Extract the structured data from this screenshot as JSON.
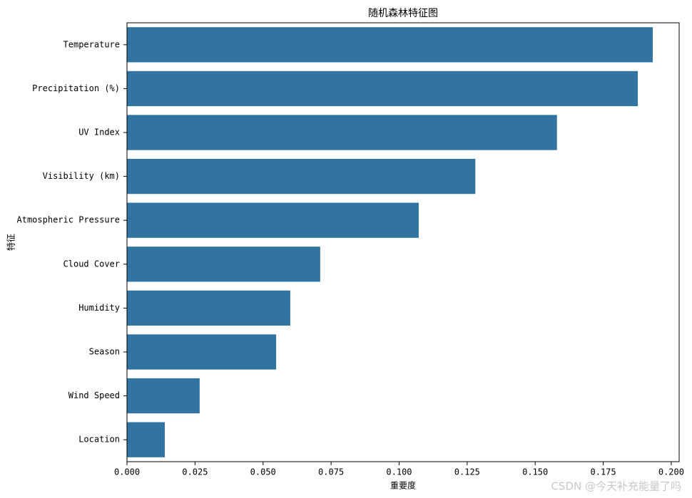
{
  "chart_data": {
    "type": "barh",
    "title": "随机森林特征图",
    "xlabel": "重要度",
    "ylabel": "特征",
    "categories": [
      "Temperature",
      "Precipitation (%)",
      "UV Index",
      "Visibility (km)",
      "Atmospheric Pressure",
      "Cloud Cover",
      "Humidity",
      "Season",
      "Wind Speed",
      "Location"
    ],
    "values": [
      0.1932,
      0.1877,
      0.158,
      0.128,
      0.1072,
      0.071,
      0.06,
      0.0548,
      0.0267,
      0.0139
    ],
    "color": "#3274a1",
    "xlim": [
      0,
      0.2029
    ],
    "xticks": [
      {
        "value": 0,
        "label": "0.000"
      },
      {
        "value": 0.025,
        "label": "0.025"
      },
      {
        "value": 0.05,
        "label": "0.050"
      },
      {
        "value": 0.075,
        "label": "0.075"
      },
      {
        "value": 0.1,
        "label": "0.100"
      },
      {
        "value": 0.125,
        "label": "0.125"
      },
      {
        "value": 0.15,
        "label": "0.150"
      },
      {
        "value": 0.175,
        "label": "0.175"
      },
      {
        "value": 0.2,
        "label": "0.200"
      }
    ],
    "watermark": "CSDN @今天补充能量了吗"
  }
}
